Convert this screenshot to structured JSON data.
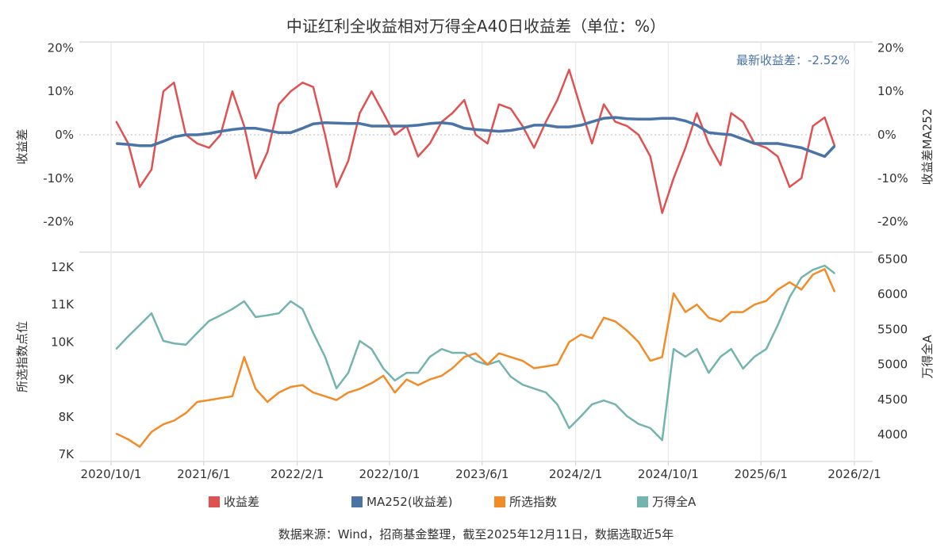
{
  "title": "中证红利全收益相对万得全A40日收益差（单位：%）",
  "annotation": "最新收益差：-2.52%",
  "footer": "数据来源：Wind，招商基金整理，截至2025年12月11日，数据选取近5年",
  "legend": [
    {
      "label": "收益差",
      "color": "#E05252"
    },
    {
      "label": "MA252(收益差)",
      "color": "#4A73A6"
    },
    {
      "label": "所选指数",
      "color": "#F28C28"
    },
    {
      "label": "万得全A",
      "color": "#73B4AE"
    }
  ],
  "chart_data": [
    {
      "type": "line",
      "panel": "top",
      "ylabel_left": "收益差",
      "ylabel_right": "收益差MA252",
      "ylim": [
        -25,
        20
      ],
      "yticks": [
        "20%",
        "10%",
        "0%",
        "-10%",
        "-20%"
      ],
      "ytick_values": [
        20,
        10,
        0,
        -10,
        -20
      ],
      "zero_line": "dotted",
      "grid": "vertical",
      "series": [
        {
          "name": "收益差",
          "color": "#E05252",
          "values": [
            3,
            -2,
            -12,
            -8,
            10,
            12,
            0,
            -2,
            -3,
            0,
            10,
            2,
            -10,
            -4,
            7,
            10,
            12,
            11,
            0,
            -12,
            -6,
            5,
            10,
            5,
            0,
            2,
            -5,
            -2,
            3,
            5,
            8,
            0,
            -2,
            7,
            6,
            2,
            -3,
            3,
            8,
            15,
            6,
            -2,
            7,
            3,
            2,
            0,
            -5,
            -18,
            -10,
            -3,
            5,
            -2,
            -7,
            5,
            3,
            -2,
            -3,
            -5,
            -12,
            -10,
            2,
            4,
            -2.52
          ]
        },
        {
          "name": "MA252(收益差)",
          "color": "#4A73A6",
          "values": [
            -2,
            -2.2,
            -2.5,
            -2.5,
            -1.5,
            -0.5,
            0,
            0,
            0.3,
            0.8,
            1.2,
            1.5,
            1.5,
            1,
            0.5,
            0.5,
            1.5,
            2.5,
            2.8,
            2.7,
            2.6,
            2.6,
            2,
            2,
            2,
            2,
            2.2,
            2.6,
            2.8,
            2.5,
            1.5,
            1.2,
            1,
            0.8,
            1,
            1.5,
            2.2,
            2.2,
            1.8,
            1.8,
            2.2,
            3,
            3.8,
            4,
            3.7,
            3.6,
            3.6,
            3.8,
            3.8,
            3.2,
            2.2,
            0.5,
            0.2,
            0,
            -1,
            -2,
            -2,
            -2,
            -2.5,
            -3,
            -4,
            -5,
            -2.6
          ]
        }
      ]
    },
    {
      "type": "line",
      "panel": "bottom",
      "ylabel_left": "所选指数点位",
      "ylabel_right": "万得全A",
      "ylim_left": [
        7,
        12
      ],
      "ylim_right": [
        4000,
        6500
      ],
      "yticks_left": [
        "12K",
        "11K",
        "10K",
        "9K",
        "8K",
        "7K"
      ],
      "ytick_values_left": [
        12,
        11,
        10,
        9,
        8,
        7
      ],
      "yticks_right": [
        "6500",
        "6000",
        "5500",
        "5000",
        "4500",
        "4000"
      ],
      "ytick_values_right": [
        6500,
        6000,
        5500,
        5000,
        4500,
        4000
      ],
      "series": [
        {
          "name": "所选指数",
          "axis": "left",
          "color": "#F28C28",
          "values": [
            7.55,
            7.4,
            7.2,
            7.6,
            7.8,
            7.9,
            8.1,
            8.4,
            8.45,
            8.5,
            8.55,
            9.6,
            8.75,
            8.4,
            8.65,
            8.8,
            8.85,
            8.65,
            8.55,
            8.45,
            8.65,
            8.75,
            8.9,
            9.1,
            8.65,
            9.0,
            8.85,
            9.0,
            9.1,
            9.3,
            9.6,
            9.7,
            9.4,
            9.7,
            9.6,
            9.5,
            9.3,
            9.35,
            9.4,
            10.0,
            10.2,
            10.1,
            10.65,
            10.55,
            10.3,
            10.0,
            9.5,
            9.6,
            11.3,
            10.8,
            11.0,
            10.65,
            10.55,
            10.8,
            10.8,
            11.0,
            11.1,
            11.4,
            11.6,
            11.4,
            11.8,
            11.95,
            11.35
          ]
        },
        {
          "name": "万得全A",
          "axis": "right",
          "color": "#73B4AE",
          "values": [
            5222,
            5400,
            5561,
            5730,
            5335,
            5300,
            5280,
            5450,
            5620,
            5700,
            5790,
            5900,
            5675,
            5700,
            5730,
            5900,
            5790,
            5450,
            5110,
            4660,
            4880,
            5335,
            5220,
            4940,
            4770,
            4880,
            4880,
            5110,
            5220,
            5165,
            5165,
            5050,
            4995,
            5050,
            4825,
            4710,
            4655,
            4600,
            4430,
            4090,
            4260,
            4430,
            4485,
            4430,
            4260,
            4150,
            4090,
            3920,
            5220,
            5110,
            5220,
            4880,
            5110,
            5220,
            4940,
            5110,
            5220,
            5561,
            5957,
            6240,
            6350,
            6410,
            6300
          ]
        }
      ]
    }
  ],
  "x": [
    "2020-10",
    "2020-11",
    "2020-12",
    "2021-01",
    "2021-02",
    "2021-03",
    "2021-04",
    "2021-05",
    "2021-06",
    "2021-07",
    "2021-08",
    "2021-09",
    "2021-10",
    "2021-11",
    "2021-12",
    "2022-01",
    "2022-02",
    "2022-03",
    "2022-04",
    "2022-05",
    "2022-06",
    "2022-07",
    "2022-08",
    "2022-09",
    "2022-10",
    "2022-11",
    "2022-12",
    "2023-01",
    "2023-02",
    "2023-03",
    "2023-04",
    "2023-05",
    "2023-06",
    "2023-07",
    "2023-08",
    "2023-09",
    "2023-10",
    "2023-11",
    "2023-12",
    "2024-01",
    "2024-02",
    "2024-03",
    "2024-04",
    "2024-05",
    "2024-06",
    "2024-07",
    "2024-08",
    "2024-09",
    "2024-10",
    "2024-11",
    "2024-12",
    "2025-01",
    "2025-02",
    "2025-03",
    "2025-04",
    "2025-05",
    "2025-06",
    "2025-07",
    "2025-08",
    "2025-09",
    "2025-10",
    "2025-11",
    "2025-12-11"
  ],
  "xticks": [
    "2020/10/1",
    "2021/6/1",
    "2022/2/1",
    "2022/10/1",
    "2023/6/1",
    "2024/2/1",
    "2024/10/1",
    "2025/6/1",
    "2026/2/1"
  ]
}
